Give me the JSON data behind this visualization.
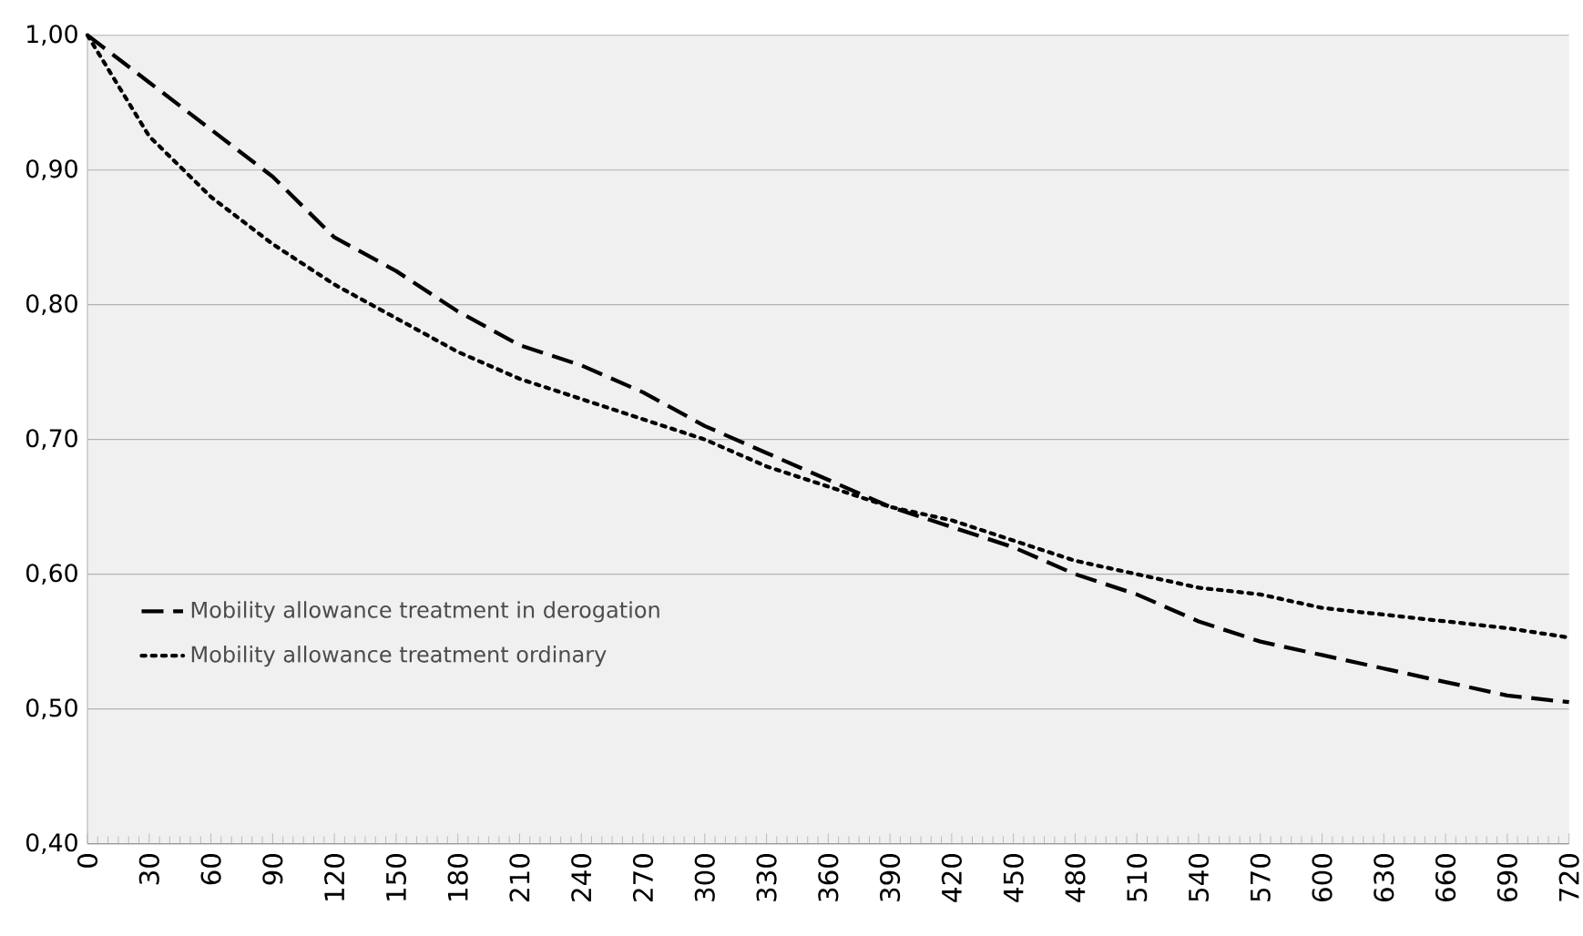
{
  "chart_data": {
    "type": "line",
    "x": [
      0,
      30,
      60,
      90,
      120,
      150,
      180,
      210,
      240,
      270,
      300,
      330,
      360,
      390,
      420,
      450,
      480,
      510,
      540,
      570,
      600,
      630,
      660,
      690,
      720
    ],
    "series": [
      {
        "name": "Mobility allowance treatment in derogation",
        "color": "#000000",
        "line_style": "dashed",
        "values": [
          1.0,
          0.965,
          0.93,
          0.895,
          0.85,
          0.825,
          0.795,
          0.77,
          0.755,
          0.735,
          0.71,
          0.69,
          0.67,
          0.65,
          0.635,
          0.62,
          0.6,
          0.585,
          0.565,
          0.55,
          0.54,
          0.53,
          0.52,
          0.51,
          0.505
        ]
      },
      {
        "name": "Mobility allowance treatment  ordinary",
        "color": "#000000",
        "line_style": "dotted",
        "values": [
          1.0,
          0.925,
          0.88,
          0.845,
          0.815,
          0.79,
          0.765,
          0.745,
          0.73,
          0.715,
          0.7,
          0.68,
          0.665,
          0.65,
          0.64,
          0.625,
          0.61,
          0.6,
          0.59,
          0.585,
          0.575,
          0.57,
          0.565,
          0.56,
          0.553
        ]
      }
    ],
    "xlim": [
      0,
      720
    ],
    "xticks": [
      0,
      30,
      60,
      90,
      120,
      150,
      180,
      210,
      240,
      270,
      300,
      330,
      360,
      390,
      420,
      450,
      480,
      510,
      540,
      570,
      600,
      630,
      660,
      690,
      720
    ],
    "ylim": [
      0.4,
      1.0
    ],
    "yticks": [
      {
        "value": 0.4,
        "label": "0,40"
      },
      {
        "value": 0.5,
        "label": "0,50"
      },
      {
        "value": 0.6,
        "label": "0,60"
      },
      {
        "value": 0.7,
        "label": "0,70"
      },
      {
        "value": 0.8,
        "label": "0,80"
      },
      {
        "value": 0.9,
        "label": "0,90"
      },
      {
        "value": 1.0,
        "label": "1,00"
      }
    ],
    "grid": "y",
    "legend": "left",
    "marker": "none"
  }
}
